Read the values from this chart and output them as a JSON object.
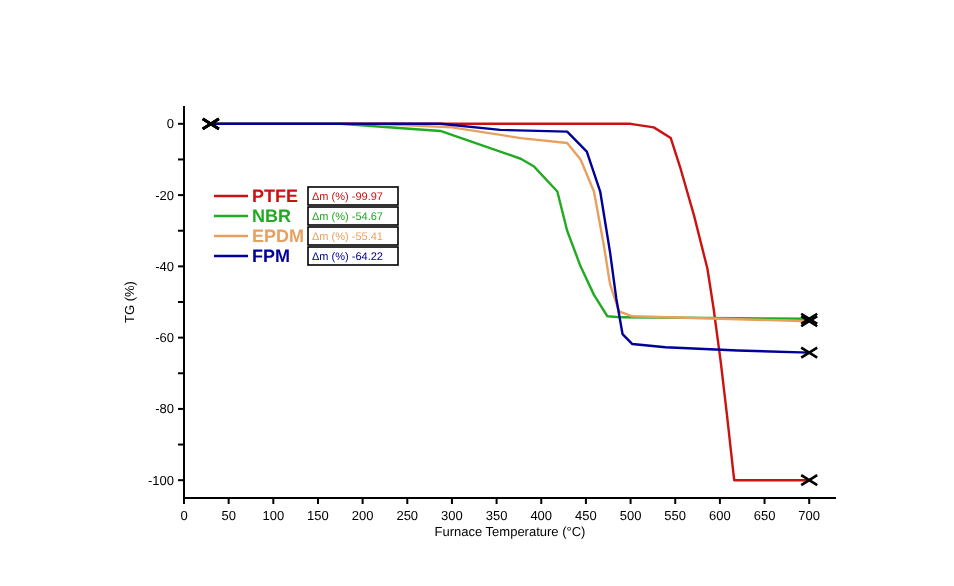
{
  "chart_data": {
    "type": "line",
    "xlabel": "Furnace Temperature (°C)",
    "ylabel": "TG (%)",
    "xlim": [
      0,
      730
    ],
    "xticks": [
      0,
      50,
      100,
      150,
      200,
      250,
      300,
      350,
      400,
      450,
      500,
      550,
      600,
      650,
      700
    ],
    "ylim": [
      -105,
      5
    ],
    "yticks": [
      0,
      {
        "value": -10,
        "label": null
      },
      -20,
      {
        "value": -30,
        "label": null
      },
      -40,
      {
        "value": -50,
        "label": null
      },
      -60,
      {
        "value": -70,
        "label": null
      },
      -80,
      {
        "value": -90,
        "label": null
      },
      -100
    ],
    "legend": "left",
    "grid": false,
    "annotations": [
      "Δm (%) -99.97",
      "Δm (%) -54.67",
      "Δm (%) -55.41",
      "Δm (%) -64.22"
    ],
    "series": [
      {
        "name": "PTFE",
        "color": "#cc1111",
        "x": [
          30,
          500,
          526,
          545,
          556,
          571,
          586,
          593,
          601,
          608,
          616,
          700
        ],
        "values": [
          0,
          0,
          -1,
          -4,
          -12.6,
          -25.7,
          -40.6,
          -51.9,
          -66.9,
          -81.9,
          -100,
          -100
        ]
      },
      {
        "name": "NBR",
        "color": "#22aa22",
        "x": [
          30,
          175,
          287,
          377,
          392,
          418,
          429,
          444,
          459,
          474,
          490,
          700
        ],
        "values": [
          0,
          0,
          -2,
          -9.8,
          -12,
          -19,
          -30,
          -40,
          -48,
          -54,
          -54.3,
          -54.7
        ]
      },
      {
        "name": "EPDM",
        "color": "#e8a060",
        "x": [
          30,
          213,
          300,
          377,
          429,
          444,
          459,
          470,
          477,
          487,
          502,
          700
        ],
        "values": [
          0,
          0,
          -1,
          -4,
          -5.4,
          -10,
          -19,
          -34,
          -45,
          -52.6,
          -54,
          -55.4
        ]
      },
      {
        "name": "FPM",
        "color": "#000099",
        "x": [
          30,
          287,
          354,
          429,
          451,
          466,
          477,
          484,
          491,
          502,
          539,
          620,
          700
        ],
        "values": [
          0,
          0,
          -1.7,
          -2.2,
          -7.8,
          -19,
          -36,
          -49,
          -59,
          -61.8,
          -62.7,
          -63.6,
          -64.2
        ]
      }
    ]
  }
}
